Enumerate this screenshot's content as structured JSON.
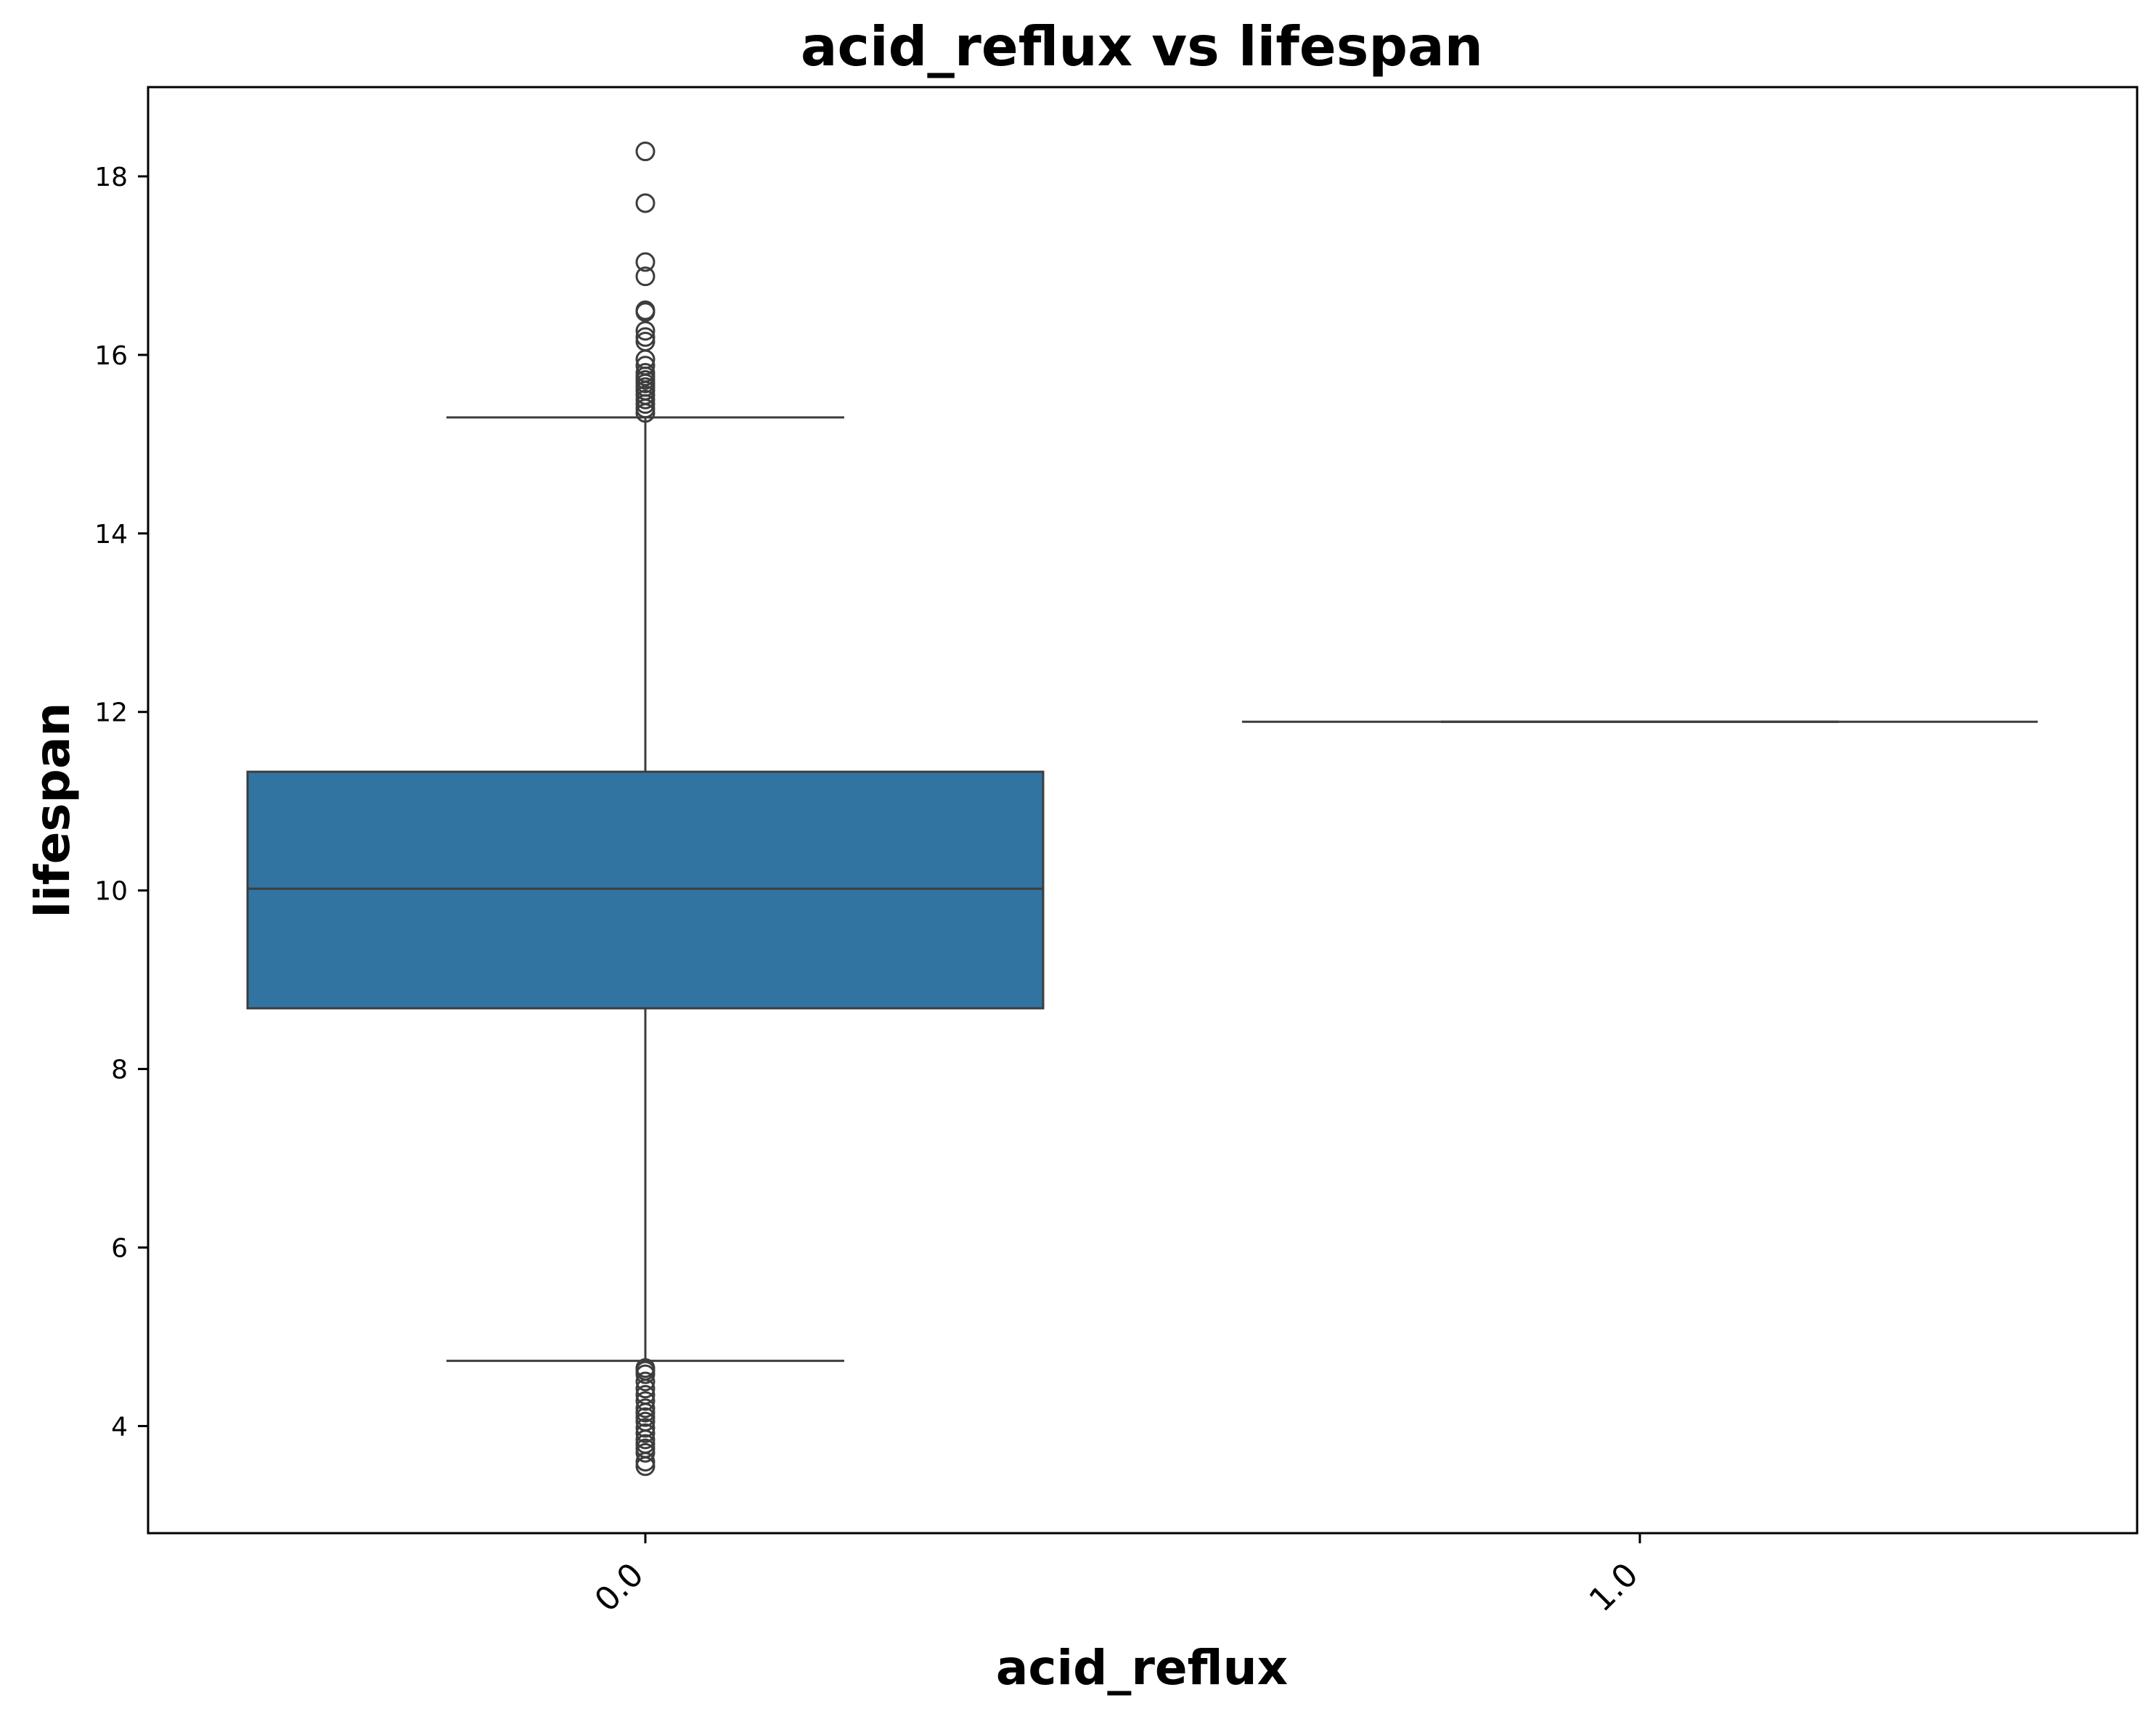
{
  "chart_data": {
    "type": "box",
    "title": "acid_reflux vs lifespan",
    "xlabel": "acid_reflux",
    "ylabel": "lifespan",
    "categories": [
      "0.0",
      "1.0"
    ],
    "yticks": [
      4,
      6,
      8,
      10,
      12,
      14,
      16,
      18
    ],
    "ylim": [
      2.8,
      19.0
    ],
    "grid": false,
    "legend": "none",
    "box_color": "#3274a1",
    "line_color": "#3d3d3d",
    "boxes": [
      {
        "category": "0.0",
        "whisker_low": 4.73,
        "q1": 8.68,
        "median": 10.02,
        "q3": 11.33,
        "whisker_high": 15.3,
        "outliers_high": [
          18.28,
          17.7,
          17.04,
          16.88,
          16.5,
          16.48,
          16.27,
          16.2,
          16.15,
          15.95,
          15.88,
          15.8,
          15.76,
          15.72,
          15.68,
          15.64,
          15.6,
          15.55,
          15.5,
          15.45,
          15.4,
          15.35
        ],
        "outliers_low": [
          4.65,
          4.62,
          4.58,
          4.5,
          4.42,
          4.35,
          4.28,
          4.2,
          4.15,
          4.1,
          4.05,
          3.98,
          3.92,
          3.85,
          3.8,
          3.75,
          3.7,
          3.6,
          3.55
        ]
      },
      {
        "category": "1.0",
        "whisker_low": 11.89,
        "q1": 11.89,
        "median": 11.89,
        "q3": 11.89,
        "whisker_high": 11.89,
        "outliers_high": [],
        "outliers_low": []
      }
    ]
  }
}
